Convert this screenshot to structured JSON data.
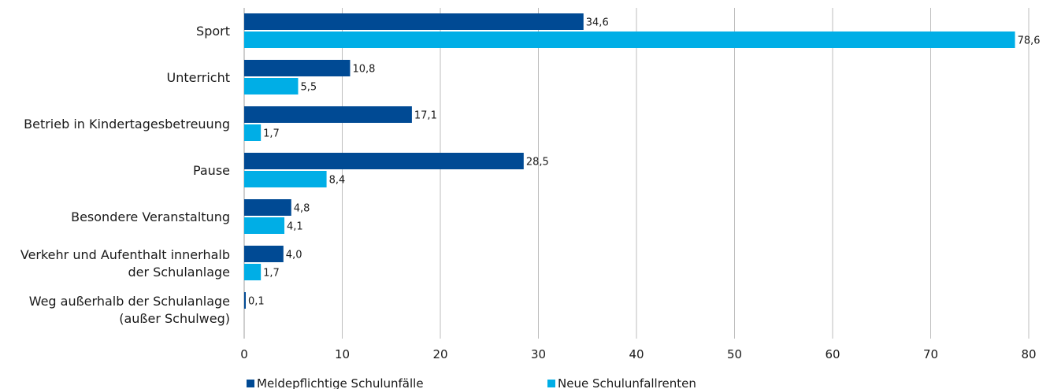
{
  "chart_data": {
    "type": "bar",
    "orientation": "horizontal",
    "categories": [
      [
        "Sport"
      ],
      [
        "Unterricht"
      ],
      [
        "Betrieb in Kindertagesbetreuung"
      ],
      [
        "Pause"
      ],
      [
        "Besondere Veranstaltung"
      ],
      [
        "Verkehr und Aufenthalt innerhalb",
        "der Schulanlage"
      ],
      [
        "Weg außerhalb der Schulanlage",
        "(außer Schulweg)"
      ]
    ],
    "series": [
      {
        "name": "Meldepflichtige Schulunfälle",
        "color": "#004a94",
        "values": [
          34.6,
          10.8,
          17.1,
          28.5,
          4.8,
          4.0,
          0.1
        ],
        "labels": [
          "34,6",
          "10,8",
          "17,1",
          "28,5",
          "4,8",
          "4,0",
          "0,1"
        ]
      },
      {
        "name": "Neue Schulunfallrenten",
        "color": "#00aee6",
        "values": [
          78.6,
          5.5,
          1.7,
          8.4,
          4.1,
          1.7,
          null
        ],
        "labels": [
          "78,6",
          "5,5",
          "1,7",
          "8,4",
          "4,1",
          "1,7",
          null
        ]
      }
    ],
    "xlim": [
      0,
      80
    ],
    "xticks": [
      0,
      10,
      20,
      30,
      40,
      50,
      60,
      70,
      80
    ],
    "xtick_labels": [
      "0",
      "10",
      "20",
      "30",
      "40",
      "50",
      "60",
      "70",
      "80"
    ],
    "grid": true,
    "legend_position": "bottom"
  }
}
